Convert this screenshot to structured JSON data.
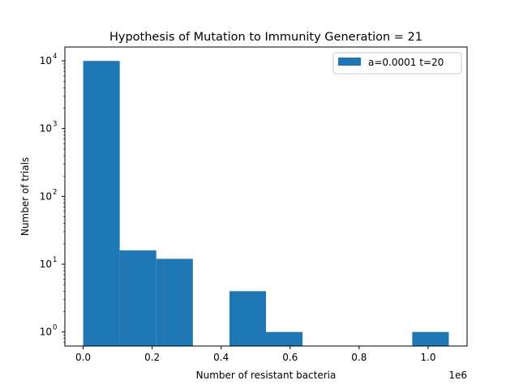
{
  "chart_data": {
    "type": "bar",
    "title": "Hypothesis of Mutation to Immunity  Generation = 21",
    "xlabel": "Number of resistant bacteria",
    "ylabel": "Number of trials",
    "x_offset_label": "1e6",
    "xscale": "linear",
    "yscale": "log",
    "xlim": [
      -0.053,
      1.113
    ],
    "ylim": [
      0.62,
      16000
    ],
    "x_ticks": [
      {
        "value": 0.0,
        "label": "0.0"
      },
      {
        "value": 0.2,
        "label": "0.2"
      },
      {
        "value": 0.4,
        "label": "0.4"
      },
      {
        "value": 0.6,
        "label": "0.6"
      },
      {
        "value": 0.8,
        "label": "0.8"
      },
      {
        "value": 1.0,
        "label": "1.0"
      }
    ],
    "y_ticks": [
      {
        "value": 1,
        "base": "10",
        "exp": "0"
      },
      {
        "value": 10,
        "base": "10",
        "exp": "1"
      },
      {
        "value": 100,
        "base": "10",
        "exp": "2"
      },
      {
        "value": 1000,
        "base": "10",
        "exp": "3"
      },
      {
        "value": 10000,
        "base": "10",
        "exp": "4"
      }
    ],
    "bin_edges": [
      0.0,
      0.106,
      0.212,
      0.318,
      0.424,
      0.53,
      0.636,
      0.742,
      0.848,
      0.954,
      1.06
    ],
    "series": [
      {
        "name": "a=0.0001 t=20",
        "color": "#1f77b4",
        "values": [
          9967,
          16,
          12,
          0,
          4,
          1,
          0,
          0,
          0,
          1
        ]
      }
    ],
    "legend": {
      "position": "top-right"
    },
    "grid": false
  }
}
